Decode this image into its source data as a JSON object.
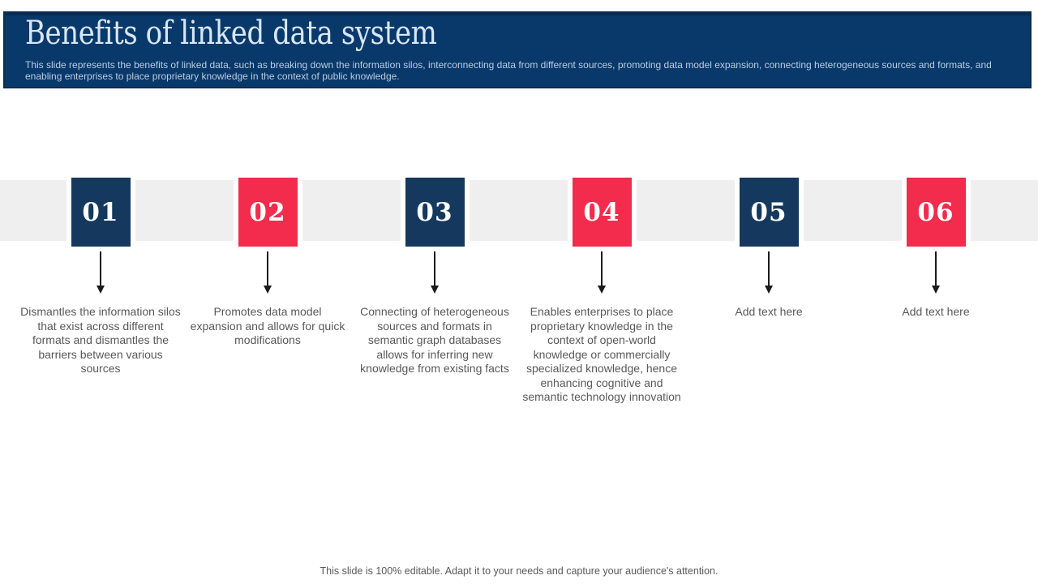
{
  "header": {
    "title": "Benefits of linked data system",
    "subtitle": "This slide represents the benefits of linked data, such as breaking down the information silos, interconnecting data from different sources, promoting data model expansion, connecting heterogeneous sources and formats, and enabling enterprises to place proprietary knowledge in the context of public knowledge."
  },
  "steps": [
    {
      "number": "01",
      "color": "navy",
      "description": "Dismantles the information silos that exist across different formats and dismantles the barriers between various sources",
      "placeholder": false
    },
    {
      "number": "02",
      "color": "red",
      "description": "Promotes data model expansion and allows for quick modifications",
      "placeholder": false
    },
    {
      "number": "03",
      "color": "navy",
      "description": "Connecting of heterogeneous sources and formats in semantic graph databases allows for inferring new knowledge from existing facts",
      "placeholder": false
    },
    {
      "number": "04",
      "color": "red",
      "description": "Enables enterprises to place proprietary knowledge in the context of open-world knowledge or commercially specialized knowledge, hence enhancing cognitive and semantic technology innovation",
      "placeholder": false
    },
    {
      "number": "05",
      "color": "navy",
      "description": "Add text here",
      "placeholder": true
    },
    {
      "number": "06",
      "color": "red",
      "description": "Add text here",
      "placeholder": true
    }
  ],
  "footer": {
    "note": "This slide is 100% editable. Adapt it to your needs and capture your audience's attention."
  },
  "colors": {
    "header_bg": "#09396B",
    "header_border": "#0A2C52",
    "navy": "#15395E",
    "red": "#F32B4C",
    "band_gray": "#EFEFEF",
    "title_text": "#D9E7F4",
    "subtitle_text": "#B9CCDE",
    "body_text": "#595959",
    "arrow": "#1B1B1B"
  }
}
